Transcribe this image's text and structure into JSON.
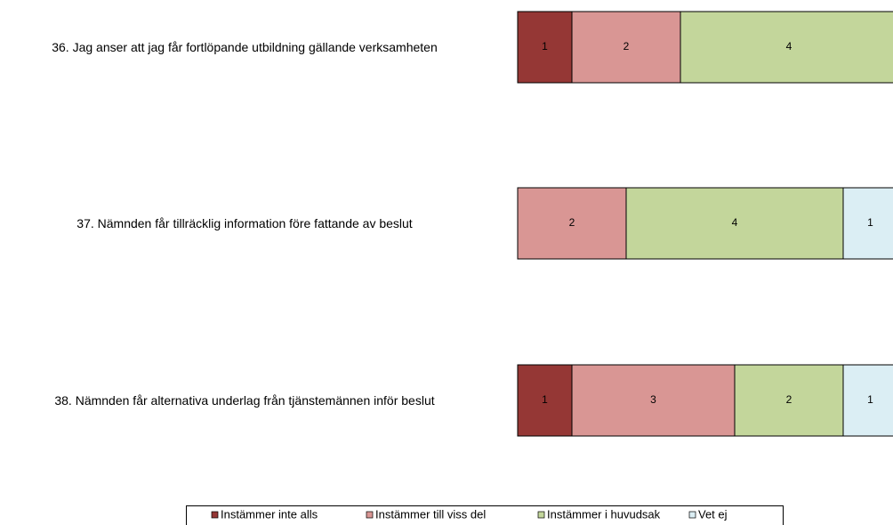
{
  "chart_data": {
    "type": "stacked-bar-horizontal",
    "categories": [
      "36. Jag anser att jag får fortlöpande utbildning gällande verksamheten",
      "37. Nämnden får tillräcklig information före fattande av beslut",
      "38. Nämnden får alternativa underlag från tjänstemännen inför beslut"
    ],
    "series": [
      {
        "name": "Instämmer inte alls",
        "color": "#953735",
        "values": [
          1,
          null,
          1
        ]
      },
      {
        "name": "Instämmer till viss del",
        "color": "#d99694",
        "values": [
          2,
          2,
          3
        ]
      },
      {
        "name": "Instämmer i huvudsak",
        "color": "#c3d69b",
        "values": [
          4,
          4,
          2
        ]
      },
      {
        "name": "Vet ej",
        "color": "#dbeef4",
        "values": [
          null,
          1,
          1
        ]
      }
    ],
    "xlim": [
      0,
      7
    ]
  }
}
